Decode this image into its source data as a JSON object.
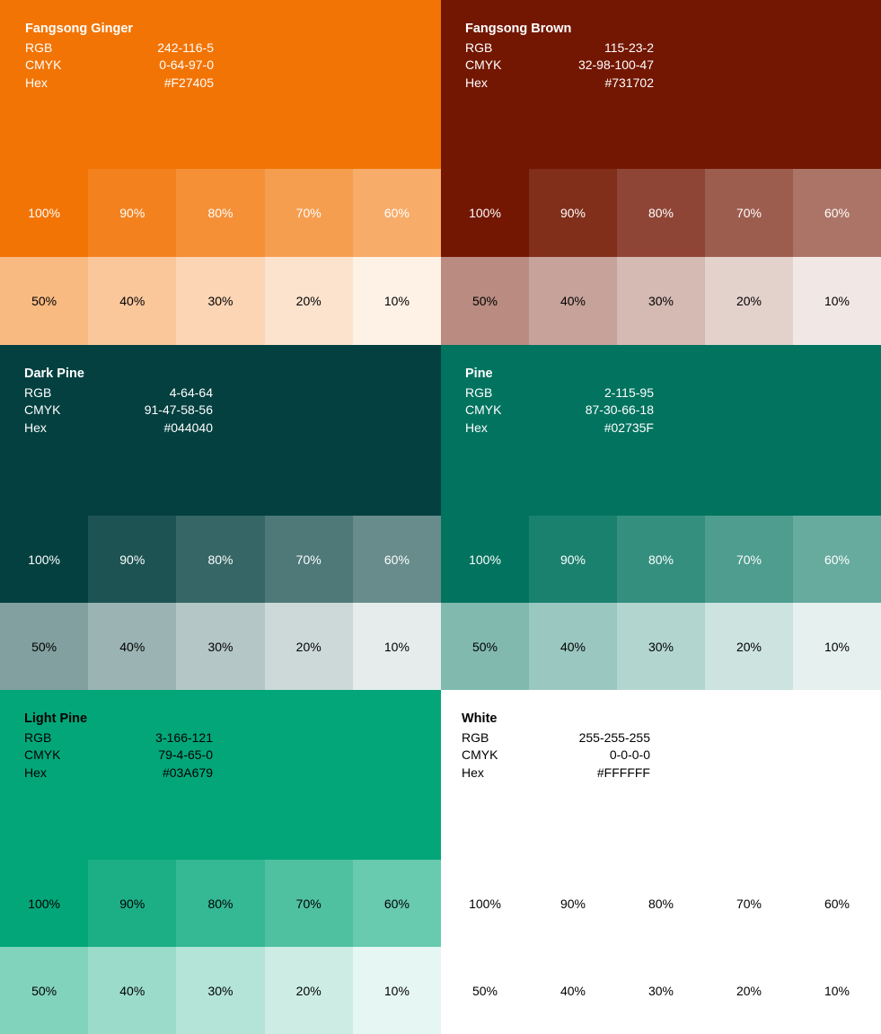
{
  "palette": [
    {
      "name": "Fangsong Ginger",
      "rgb_label": "RGB",
      "rgb": "242-116-5",
      "cmyk_label": "CMYK",
      "cmyk": "0-64-97-0",
      "hex_label": "Hex",
      "hex": "#F27405",
      "base_color": "#F27405",
      "text_color": "#FFFFFF",
      "row1_text_color": "#FFFFFF",
      "row2_text_color": "#000000",
      "tints": [
        "100%",
        "90%",
        "80%",
        "70%",
        "60%",
        "50%",
        "40%",
        "30%",
        "20%",
        "10%"
      ]
    },
    {
      "name": "Fangsong Brown",
      "rgb_label": "RGB",
      "rgb": "115-23-2",
      "cmyk_label": "CMYK",
      "cmyk": "32-98-100-47",
      "hex_label": "Hex",
      "hex": "#731702",
      "base_color": "#731702",
      "text_color": "#FFFFFF",
      "row1_text_color": "#FFFFFF",
      "row2_text_color": "#000000",
      "tints": [
        "100%",
        "90%",
        "80%",
        "70%",
        "60%",
        "50%",
        "40%",
        "30%",
        "20%",
        "10%"
      ]
    },
    {
      "name": "Dark Pine",
      "rgb_label": "RGB",
      "rgb": "4-64-64",
      "cmyk_label": "CMYK",
      "cmyk": "91-47-58-56",
      "hex_label": "Hex",
      "hex": "#044040",
      "base_color": "#044040",
      "text_color": "#FFFFFF",
      "row1_text_color": "#FFFFFF",
      "row2_text_color": "#000000",
      "tints": [
        "100%",
        "90%",
        "80%",
        "70%",
        "60%",
        "50%",
        "40%",
        "30%",
        "20%",
        "10%"
      ]
    },
    {
      "name": "Pine",
      "rgb_label": "RGB",
      "rgb": "2-115-95",
      "cmyk_label": "CMYK",
      "cmyk": "87-30-66-18",
      "hex_label": "Hex",
      "hex": "#02735F",
      "base_color": "#02735F",
      "text_color": "#FFFFFF",
      "row1_text_color": "#FFFFFF",
      "row2_text_color": "#000000",
      "tints": [
        "100%",
        "90%",
        "80%",
        "70%",
        "60%",
        "50%",
        "40%",
        "30%",
        "20%",
        "10%"
      ]
    },
    {
      "name": "Light Pine",
      "rgb_label": "RGB",
      "rgb": "3-166-121",
      "cmyk_label": "CMYK",
      "cmyk": "79-4-65-0",
      "hex_label": "Hex",
      "hex": "#03A679",
      "base_color": "#03A679",
      "text_color": "#000000",
      "row1_text_color": "#000000",
      "row2_text_color": "#000000",
      "tints": [
        "100%",
        "90%",
        "80%",
        "70%",
        "60%",
        "50%",
        "40%",
        "30%",
        "20%",
        "10%"
      ]
    },
    {
      "name": "White",
      "rgb_label": "RGB",
      "rgb": "255-255-255",
      "cmyk_label": "CMYK",
      "cmyk": "0-0-0-0",
      "hex_label": "Hex",
      "hex": "#FFFFFF",
      "base_color": "#FFFFFF",
      "text_color": "#000000",
      "row1_text_color": "#000000",
      "row2_text_color": "#000000",
      "tints": [
        "100%",
        "90%",
        "80%",
        "70%",
        "60%",
        "50%",
        "40%",
        "30%",
        "20%",
        "10%"
      ]
    }
  ]
}
